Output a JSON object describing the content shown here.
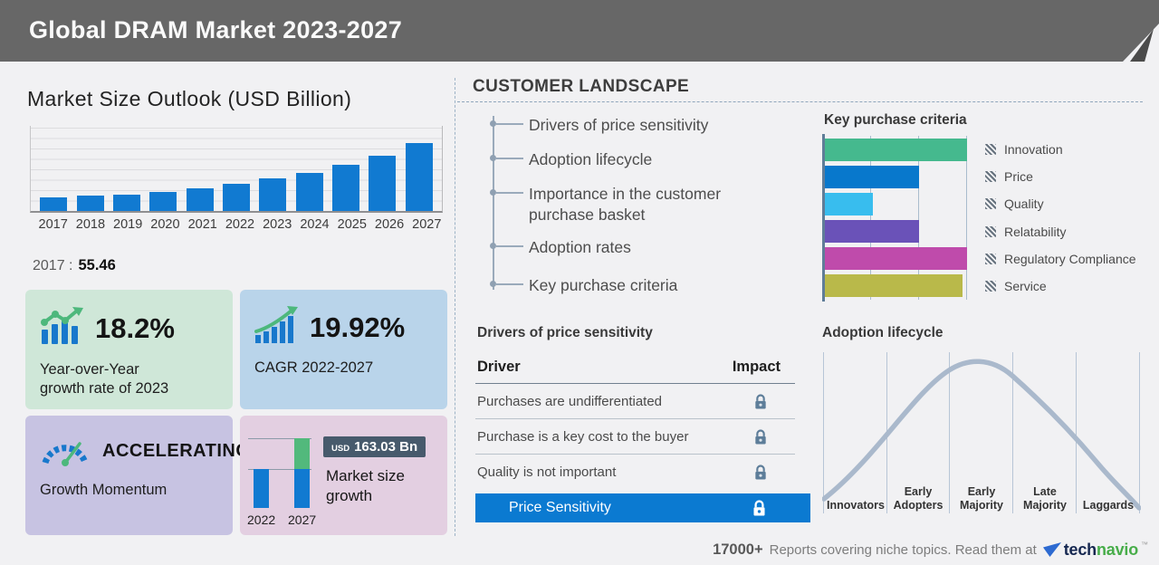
{
  "header": {
    "title": "Global DRAM Market 2023-2027"
  },
  "market_outlook": {
    "title": "Market Size Outlook (USD Billion)",
    "base_year_label": "2017 :",
    "base_year_value": "55.46"
  },
  "chart_data": [
    {
      "type": "bar",
      "title": "Market Size Outlook (USD Billion)",
      "categories": [
        "2017",
        "2018",
        "2019",
        "2020",
        "2021",
        "2022",
        "2023",
        "2024",
        "2025",
        "2026",
        "2027"
      ],
      "values": [
        55.46,
        60.5,
        66.5,
        77.5,
        89.5,
        110.22,
        130.28,
        154,
        184,
        222,
        273.25
      ],
      "unit": "USD Billion",
      "bar_color": "#117ad1",
      "grid": true,
      "note": "2017 value labeled 55.46; 2023-2027 values estimated from bar heights, CAGR 19.92% and growth 163.03 Bn"
    },
    {
      "type": "bar",
      "orientation": "horizontal",
      "title": "Key purchase criteria",
      "categories": [
        "Innovation",
        "Price",
        "Quality",
        "Relatability",
        "Regulatory Compliance",
        "Service"
      ],
      "values": [
        100,
        66,
        34,
        66,
        100,
        97
      ],
      "value_unit": "relative length, % of axis",
      "colors": [
        "#45b98e",
        "#0878cc",
        "#38bdee",
        "#6a52b8",
        "#bf4bab",
        "#b9b94a"
      ],
      "legend_position": "right",
      "grid": true
    },
    {
      "type": "bar",
      "title": "Market size growth",
      "categories": [
        "2022",
        "2027"
      ],
      "values": [
        110.22,
        273.25
      ],
      "growth_label": "163.03 Bn",
      "currency": "USD",
      "colors": [
        "#117ad1",
        "#117ad1 + #52b97c growth segment"
      ]
    },
    {
      "type": "line",
      "title": "Adoption lifecycle",
      "shape": "bell curve",
      "stages": [
        "Innovators",
        "Early Adopters",
        "Early Majority",
        "Late Majority",
        "Laggards"
      ],
      "curve_color": "#aab9cc",
      "peak_stage": "Early Majority"
    }
  ],
  "stats": {
    "yoy": {
      "value": "18.2%",
      "label_line1": "Year-over-Year",
      "label_line2": "growth rate of 2023"
    },
    "cagr": {
      "value": "19.92%",
      "label": "CAGR 2022-2027"
    },
    "momentum": {
      "value": "ACCELERATING",
      "label": "Growth Momentum"
    },
    "growth": {
      "currency": "USD",
      "amount": "163.03 Bn",
      "label_line1": "Market size",
      "label_line2": "growth",
      "years": [
        "2022",
        "2027"
      ]
    }
  },
  "customer_landscape": {
    "title": "CUSTOMER  LANDSCAPE",
    "items": [
      "Drivers of price sensitivity",
      "Adoption lifecycle",
      "Importance in the customer purchase basket",
      "Adoption rates",
      "Key purchase criteria"
    ],
    "price_sensitivity": {
      "title": "Drivers of price sensitivity",
      "col_driver": "Driver",
      "col_impact": "Impact",
      "rows": [
        "Purchases are undifferentiated",
        "Purchase is a key cost to the buyer",
        "Quality is not important"
      ],
      "highlight": "Price Sensitivity"
    },
    "key_purchase_title": "Key purchase criteria",
    "adoption_title": "Adoption lifecycle"
  },
  "footer": {
    "count": "17000+",
    "text": "Reports covering niche topics. Read them at",
    "brand_prefix": "tech",
    "brand_suffix": "navio",
    "trademark": "™"
  },
  "colors": {
    "header_bg": "#676767",
    "primary_blue": "#117ad1",
    "card_green": "#cfe7d8",
    "card_blue": "#b9d4ea",
    "card_purple": "#c7c3e2",
    "card_pink": "#e3cfe1",
    "badge_slate": "#475a6c",
    "icon_green": "#4db87c",
    "brand_navy": "#152750",
    "brand_green": "#47ad49"
  }
}
